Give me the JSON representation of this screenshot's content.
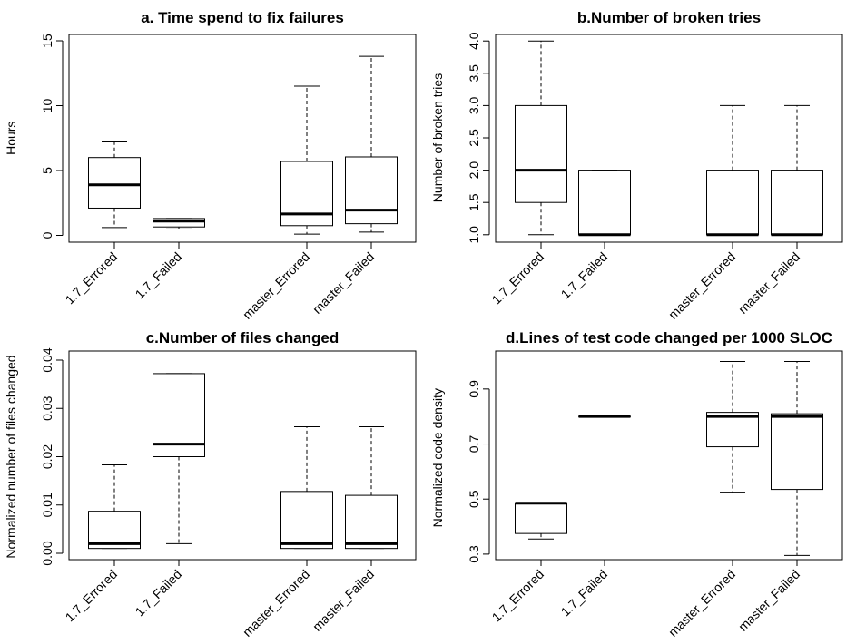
{
  "chart_data": [
    {
      "type": "box",
      "title": "a. Time spend to fix failures",
      "xlabel": "",
      "ylabel": "Hours",
      "ylim": [
        0,
        15
      ],
      "yticks": [
        0,
        5,
        10,
        15
      ],
      "ytick_labels": [
        "0",
        "5",
        "10",
        "15"
      ],
      "categories": [
        "1.7_Errored",
        "1.7_Failed",
        "master_Errored",
        "master_Failed"
      ],
      "boxes": [
        {
          "whisker_low": 0.6,
          "q1": 2.1,
          "median": 3.9,
          "q3": 6.0,
          "whisker_high": 7.2
        },
        {
          "whisker_low": 0.5,
          "q1": 0.65,
          "median": 1.1,
          "q3": 1.3,
          "whisker_high": 1.3
        },
        {
          "whisker_low": 0.1,
          "q1": 0.75,
          "median": 1.65,
          "q3": 5.7,
          "whisker_high": 11.5
        },
        {
          "whisker_low": 0.25,
          "q1": 0.9,
          "median": 1.95,
          "q3": 6.05,
          "whisker_high": 13.8
        }
      ]
    },
    {
      "type": "box",
      "title": "b.Number of broken tries",
      "xlabel": "",
      "ylabel": "Number of broken tries",
      "ylim": [
        1.0,
        4.0
      ],
      "yticks": [
        1.0,
        1.5,
        2.0,
        2.5,
        3.0,
        3.5,
        4.0
      ],
      "ytick_labels": [
        "1.0",
        "1.5",
        "2.0",
        "2.5",
        "3.0",
        "3.5",
        "4.0"
      ],
      "categories": [
        "1.7_Errored",
        "1.7_Failed",
        "master_Errored",
        "master_Failed"
      ],
      "boxes": [
        {
          "whisker_low": 1.0,
          "q1": 1.5,
          "median": 2.0,
          "q3": 3.0,
          "whisker_high": 4.0
        },
        {
          "whisker_low": 1.0,
          "q1": 1.0,
          "median": 1.0,
          "q3": 2.0,
          "whisker_high": 2.0
        },
        {
          "whisker_low": 1.0,
          "q1": 1.0,
          "median": 1.0,
          "q3": 2.0,
          "whisker_high": 3.0
        },
        {
          "whisker_low": 1.0,
          "q1": 1.0,
          "median": 1.0,
          "q3": 2.0,
          "whisker_high": 3.0
        }
      ]
    },
    {
      "type": "box",
      "title": "c.Number of files changed",
      "xlabel": "",
      "ylabel": "Normalized number of files changed",
      "ylim": [
        0.0,
        0.04
      ],
      "yticks": [
        0.0,
        0.01,
        0.02,
        0.03,
        0.04
      ],
      "ytick_labels": [
        "0.00",
        "0.01",
        "0.02",
        "0.03",
        "0.04"
      ],
      "categories": [
        "1.7_Errored",
        "1.7_Failed",
        "master_Errored",
        "master_Failed"
      ],
      "boxes": [
        {
          "whisker_low": 0.001,
          "q1": 0.001,
          "median": 0.002,
          "q3": 0.0087,
          "whisker_high": 0.0183
        },
        {
          "whisker_low": 0.002,
          "q1": 0.02,
          "median": 0.0226,
          "q3": 0.0372,
          "whisker_high": 0.0372
        },
        {
          "whisker_low": 0.001,
          "q1": 0.001,
          "median": 0.002,
          "q3": 0.0128,
          "whisker_high": 0.0262
        },
        {
          "whisker_low": 0.001,
          "q1": 0.001,
          "median": 0.002,
          "q3": 0.012,
          "whisker_high": 0.0262
        }
      ]
    },
    {
      "type": "box",
      "title": "d.Lines of test code changed per 1000 SLOC",
      "xlabel": "",
      "ylabel": "Normalized code density",
      "ylim": [
        0.3,
        1.0
      ],
      "yticks": [
        0.3,
        0.5,
        0.7,
        0.9
      ],
      "ytick_labels": [
        "0.3",
        "0.5",
        "0.7",
        "0.9"
      ],
      "categories": [
        "1.7_Errored",
        "1.7_Failed",
        "master_Errored",
        "master_Failed"
      ],
      "boxes": [
        {
          "whisker_low": 0.355,
          "q1": 0.375,
          "median": 0.485,
          "q3": 0.485,
          "whisker_high": 0.485
        },
        {
          "whisker_low": 0.8,
          "q1": 0.8,
          "median": 0.8,
          "q3": 0.8,
          "whisker_high": 0.8
        },
        {
          "whisker_low": 0.525,
          "q1": 0.69,
          "median": 0.8,
          "q3": 0.815,
          "whisker_high": 1.0
        },
        {
          "whisker_low": 0.295,
          "q1": 0.535,
          "median": 0.8,
          "q3": 0.81,
          "whisker_high": 1.0
        }
      ]
    }
  ]
}
